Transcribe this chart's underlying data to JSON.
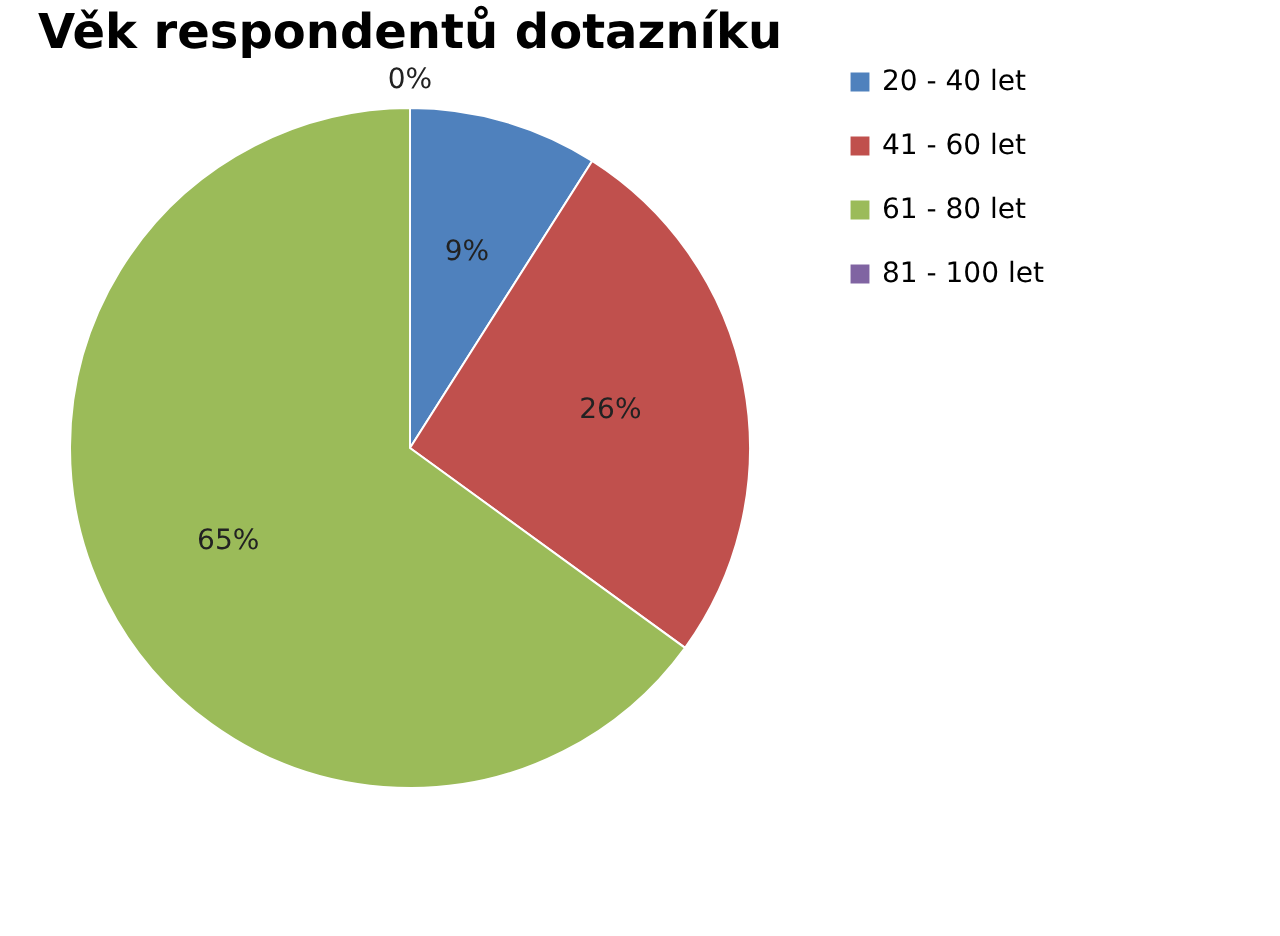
{
  "chart_data": {
    "type": "pie",
    "title": "Věk respondentů dotazníku",
    "categories": [
      "20 - 40 let",
      "41 - 60 let",
      "61 - 80 let",
      "81 - 100 let"
    ],
    "values": [
      9,
      26,
      65,
      0
    ],
    "colors": [
      "#4f81bd",
      "#c0504d",
      "#9bbb59",
      "#8064a2"
    ],
    "value_labels": [
      "9%",
      "26%",
      "65%",
      "0%"
    ],
    "legend": "right"
  }
}
